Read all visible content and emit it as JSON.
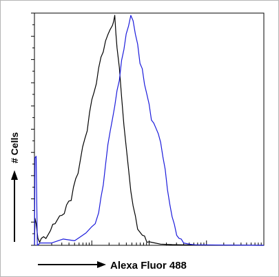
{
  "chart_data": {
    "type": "line",
    "xlabel": "Alexa Fluor 488",
    "ylabel": "# Cells",
    "x_scale": "log",
    "x_decades": 4,
    "y_max": 100,
    "grid": false,
    "series": [
      {
        "color": "#000000",
        "points": [
          [
            0.0,
            0
          ],
          [
            0.01,
            12
          ],
          [
            0.03,
            9
          ],
          [
            0.06,
            2
          ],
          [
            0.09,
            2
          ],
          [
            0.12,
            3
          ],
          [
            0.16,
            3
          ],
          [
            0.2,
            4
          ],
          [
            0.24,
            5
          ],
          [
            0.28,
            6
          ],
          [
            0.32,
            8
          ],
          [
            0.36,
            10
          ],
          [
            0.4,
            11
          ],
          [
            0.44,
            12
          ],
          [
            0.48,
            14
          ],
          [
            0.52,
            14
          ],
          [
            0.56,
            17
          ],
          [
            0.6,
            18
          ],
          [
            0.64,
            20
          ],
          [
            0.68,
            25
          ],
          [
            0.72,
            28
          ],
          [
            0.76,
            32
          ],
          [
            0.8,
            37
          ],
          [
            0.84,
            42
          ],
          [
            0.88,
            45
          ],
          [
            0.92,
            50
          ],
          [
            0.96,
            57
          ],
          [
            1.0,
            62
          ],
          [
            1.04,
            67
          ],
          [
            1.08,
            70
          ],
          [
            1.12,
            76
          ],
          [
            1.16,
            80
          ],
          [
            1.2,
            84
          ],
          [
            1.24,
            88
          ],
          [
            1.28,
            90
          ],
          [
            1.32,
            94
          ],
          [
            1.36,
            95
          ],
          [
            1.38,
            96
          ],
          [
            1.4,
            98
          ],
          [
            1.42,
            92
          ],
          [
            1.44,
            85
          ],
          [
            1.48,
            76
          ],
          [
            1.52,
            65
          ],
          [
            1.56,
            52
          ],
          [
            1.6,
            42
          ],
          [
            1.64,
            32
          ],
          [
            1.68,
            24
          ],
          [
            1.72,
            17
          ],
          [
            1.76,
            12
          ],
          [
            1.8,
            8
          ],
          [
            1.84,
            6
          ],
          [
            1.88,
            4
          ],
          [
            1.92,
            3
          ],
          [
            1.96,
            2
          ],
          [
            2.0,
            1.5
          ],
          [
            2.1,
            1
          ],
          [
            2.2,
            0.5
          ],
          [
            2.4,
            0.3
          ],
          [
            2.6,
            0.2
          ],
          [
            4.0,
            0
          ]
        ]
      },
      {
        "color": "#1a1adb",
        "points": [
          [
            0.0,
            0
          ],
          [
            0.01,
            38
          ],
          [
            0.03,
            38
          ],
          [
            0.05,
            0
          ],
          [
            0.1,
            1
          ],
          [
            0.3,
            1
          ],
          [
            0.5,
            2
          ],
          [
            0.7,
            3
          ],
          [
            0.8,
            4
          ],
          [
            0.9,
            5
          ],
          [
            1.0,
            7
          ],
          [
            1.06,
            10
          ],
          [
            1.12,
            14
          ],
          [
            1.16,
            20
          ],
          [
            1.2,
            27
          ],
          [
            1.24,
            35
          ],
          [
            1.28,
            43
          ],
          [
            1.32,
            48
          ],
          [
            1.36,
            55
          ],
          [
            1.4,
            60
          ],
          [
            1.44,
            66
          ],
          [
            1.48,
            72
          ],
          [
            1.52,
            80
          ],
          [
            1.56,
            84
          ],
          [
            1.6,
            90
          ],
          [
            1.64,
            95
          ],
          [
            1.68,
            99
          ],
          [
            1.72,
            96
          ],
          [
            1.76,
            92
          ],
          [
            1.8,
            87
          ],
          [
            1.84,
            78
          ],
          [
            1.88,
            75
          ],
          [
            1.92,
            70
          ],
          [
            1.96,
            65
          ],
          [
            2.0,
            60
          ],
          [
            2.04,
            55
          ],
          [
            2.08,
            53
          ],
          [
            2.12,
            50
          ],
          [
            2.16,
            47
          ],
          [
            2.2,
            45
          ],
          [
            2.24,
            38
          ],
          [
            2.28,
            32
          ],
          [
            2.32,
            25
          ],
          [
            2.36,
            18
          ],
          [
            2.4,
            12
          ],
          [
            2.44,
            8
          ],
          [
            2.48,
            5
          ],
          [
            2.52,
            3
          ],
          [
            2.56,
            2
          ],
          [
            2.6,
            1
          ],
          [
            2.7,
            0.5
          ],
          [
            2.8,
            0.2
          ],
          [
            4.0,
            0
          ]
        ]
      }
    ]
  }
}
